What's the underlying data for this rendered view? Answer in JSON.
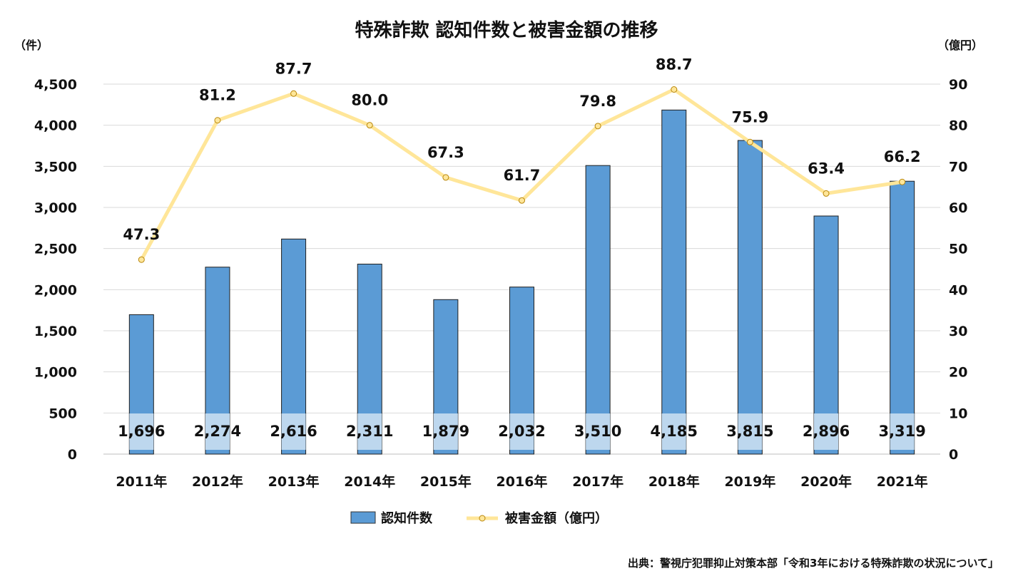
{
  "chart_data": {
    "type": "bar",
    "title": "特殊詐欺 認知件数と被害金額の推移",
    "categories": [
      "2011年",
      "2012年",
      "2013年",
      "2014年",
      "2015年",
      "2016年",
      "2017年",
      "2018年",
      "2019年",
      "2020年",
      "2021年"
    ],
    "series": [
      {
        "name": "認知件数",
        "type": "bar",
        "axis": "left",
        "color": "#5b9bd5",
        "values": [
          1696,
          2274,
          2616,
          2311,
          1879,
          2032,
          3510,
          4185,
          3815,
          2896,
          3319
        ],
        "labels": [
          "1,696",
          "2,274",
          "2,616",
          "2,311",
          "1,879",
          "2,032",
          "3,510",
          "4,185",
          "3,815",
          "2,896",
          "3,319"
        ]
      },
      {
        "name": "被害金額（億円）",
        "type": "line",
        "axis": "right",
        "color": "#ffe699",
        "values": [
          47.3,
          81.2,
          87.7,
          80.0,
          67.3,
          61.7,
          79.8,
          88.7,
          75.9,
          63.4,
          66.2
        ],
        "labels": [
          "47.3",
          "81.2",
          "87.7",
          "80.0",
          "67.3",
          "61.7",
          "79.8",
          "88.7",
          "75.9",
          "63.4",
          "66.2"
        ]
      }
    ],
    "y_left": {
      "label": "（件）",
      "ylim": [
        0,
        4500
      ],
      "ticks": [
        "0",
        "500",
        "1,000",
        "1,500",
        "2,000",
        "2,500",
        "3,000",
        "3,500",
        "4,000",
        "4,500"
      ]
    },
    "y_right": {
      "label": "（億円）",
      "ylim": [
        0,
        90
      ],
      "ticks": [
        "0",
        "10",
        "20",
        "30",
        "40",
        "50",
        "60",
        "70",
        "80",
        "90"
      ]
    },
    "grid": true,
    "legend": "bottom"
  },
  "source": "出典：警視庁犯罪抑止対策本部「令和3年における特殊詐欺の状況について」"
}
